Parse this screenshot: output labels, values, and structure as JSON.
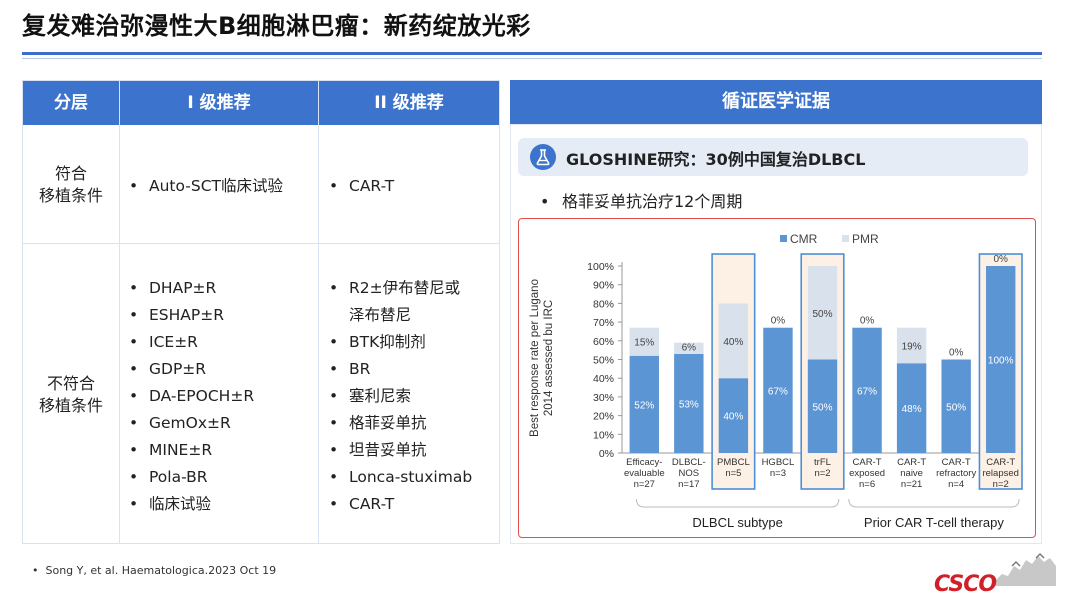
{
  "title": "复发难治弥漫性大B细胞淋巴瘤：新药绽放光彩",
  "table": {
    "headers": [
      "分层",
      "I 级推荐",
      "II 级推荐"
    ],
    "rows": [
      {
        "label_line1": "符合",
        "label_line2": "移植条件",
        "level1": [
          "Auto-SCT临床试验"
        ],
        "level2": [
          "CAR-T"
        ]
      },
      {
        "label_line1": "不符合",
        "label_line2": "移植条件",
        "level1": [
          "DHAP±R",
          "ESHAP±R",
          "ICE±R",
          "GDP±R",
          "DA-EPOCH±R",
          "GemOx±R",
          "MINE±R",
          "Pola-BR",
          "临床试验"
        ],
        "level2": [
          "R2±伊布替尼或",
          "泽布替尼",
          "BTK抑制剂",
          "BR",
          "塞利尼索",
          "格菲妥单抗",
          "坦昔妥单抗",
          "Lonca-stuximab",
          "CAR-T"
        ]
      }
    ]
  },
  "evidence": {
    "header": "循证医学证据",
    "study_title": "GLOSHINE研究：30例中国复治DLBCL",
    "study_icon": "flask-icon",
    "bullet": "格菲妥单抗治疗12个周期"
  },
  "chart_data": {
    "type": "bar",
    "stacked": true,
    "ylabel": "Best response rate per Lugano 2014 assessed bu IRC",
    "ylim": [
      0,
      100
    ],
    "yticks": [
      "0%",
      "10%",
      "20%",
      "30%",
      "40%",
      "50%",
      "60%",
      "70%",
      "80%",
      "90%",
      "100%"
    ],
    "categories": [
      {
        "line1": "Efficacy-",
        "line2": "evaluable",
        "line3": "n=27",
        "highlight": false
      },
      {
        "line1": "DLBCL-",
        "line2": "NOS",
        "line3": "n=17",
        "highlight": false
      },
      {
        "line1": "PMBCL",
        "line2": "n=5",
        "line3": "",
        "highlight": true
      },
      {
        "line1": "HGBCL",
        "line2": "n=3",
        "line3": "",
        "highlight": false
      },
      {
        "line1": "trFL",
        "line2": "n=2",
        "line3": "",
        "highlight": true
      },
      {
        "line1": "CAR-T",
        "line2": "exposed",
        "line3": "n=6",
        "highlight": false
      },
      {
        "line1": "CAR-T",
        "line2": "naive",
        "line3": "n=21",
        "highlight": false
      },
      {
        "line1": "CAR-T",
        "line2": "refractory",
        "line3": "n=4",
        "highlight": false
      },
      {
        "line1": "CAR-T",
        "line2": "relapsed",
        "line3": "n=2",
        "highlight": true
      }
    ],
    "series": [
      {
        "name": "CMR",
        "color": "#5b95d3",
        "values": [
          52,
          53,
          40,
          67,
          50,
          67,
          48,
          50,
          100
        ],
        "labels": [
          "52%",
          "53%",
          "40%",
          "67%",
          "50%",
          "67%",
          "48%",
          "50%",
          "100%"
        ]
      },
      {
        "name": "PMR",
        "color": "#d9e1ec",
        "values": [
          15,
          6,
          40,
          0,
          50,
          0,
          19,
          0,
          0
        ],
        "labels": [
          "15%",
          "6%",
          "40%",
          "0%",
          "50%",
          "0%",
          "19%",
          "0%",
          "0%"
        ]
      }
    ],
    "groups": [
      {
        "label": "DLBCL subtype"
      },
      {
        "label": "Prior CAR T-cell therapy"
      }
    ],
    "legend": "top",
    "grid": false
  },
  "citation": "Song Y, et al. Haematologica.2023 Oct 19",
  "logo_text": "CSCO"
}
